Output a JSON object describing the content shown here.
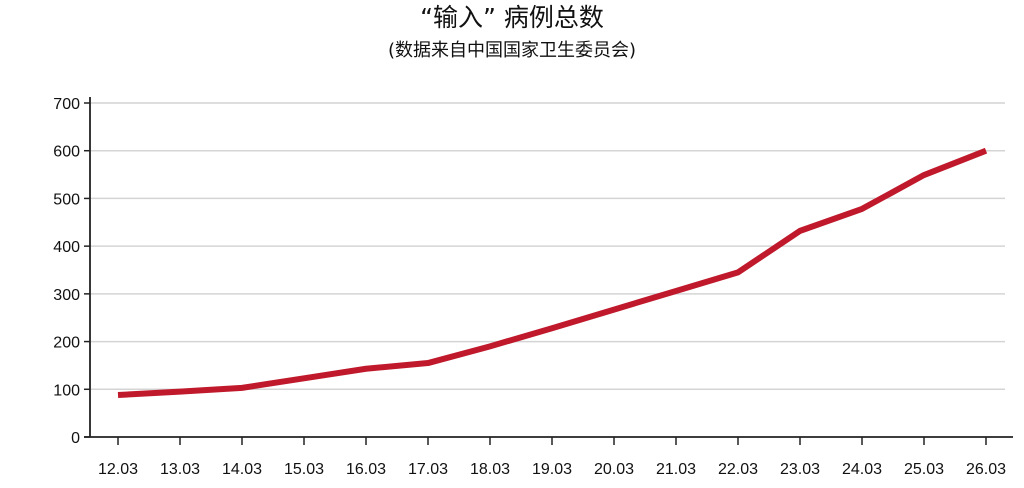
{
  "chart_data": {
    "type": "line",
    "title": "“输入” 病例总数",
    "subtitle": "(数据来自中国国家卫生委员会)",
    "xlabel": "",
    "ylabel": "",
    "categories": [
      "12.03",
      "13.03",
      "14.03",
      "15.03",
      "16.03",
      "17.03",
      "18.03",
      "19.03",
      "20.03",
      "21.03",
      "22.03",
      "23.03",
      "24.03",
      "25.03",
      "26.03"
    ],
    "series": [
      {
        "values": [
          88,
          95,
          103,
          123,
          143,
          155,
          190,
          228,
          267,
          306,
          345,
          432,
          478,
          549,
          600
        ]
      }
    ],
    "ylim": [
      0,
      700
    ],
    "yticks": [
      0,
      100,
      200,
      300,
      400,
      500,
      600,
      700
    ],
    "grid": true,
    "legend": "none",
    "colors": {
      "line": "#c0192c",
      "grid": "#d4d4d4",
      "axis": "#222222"
    }
  }
}
